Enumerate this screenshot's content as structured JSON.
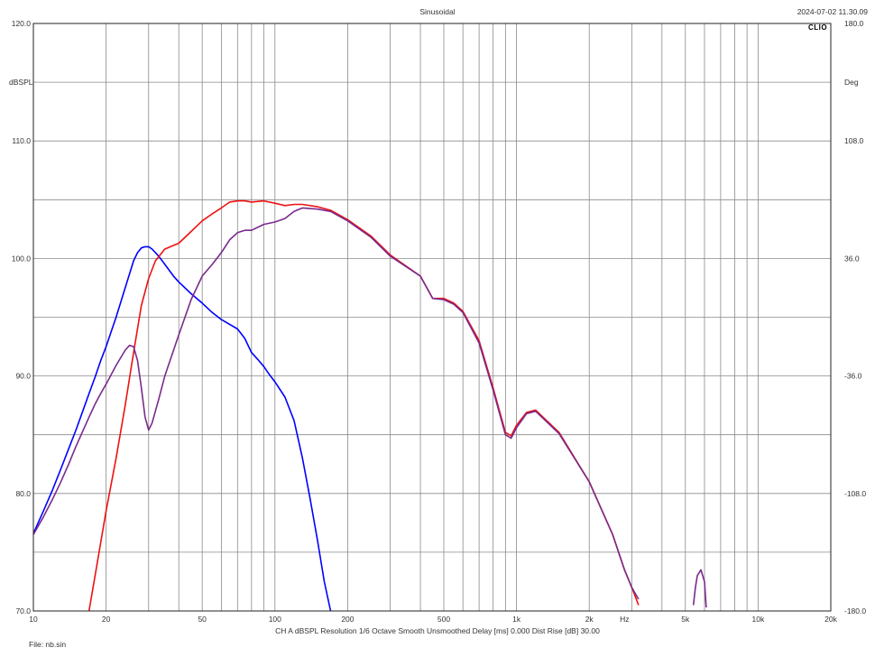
{
  "header": {
    "title": "Sinusoidal",
    "timestamp": "2024-07-02 11.30.09",
    "logo": "CLIO"
  },
  "footer": {
    "status": "CH A   dBSPL   Resolution 1/6 Octave   Smooth Unsmoothed   Delay [ms] 0.000   Dist Rise [dB] 30.00",
    "file": "File: nb.sin"
  },
  "chart_data": {
    "type": "line",
    "xscale": "log",
    "xlim": [
      10,
      20000
    ],
    "ylim": [
      70,
      120
    ],
    "y2lim": [
      -180,
      180
    ],
    "ylabel": "dBSPL",
    "y2label": "Deg",
    "xunit_label": "Hz",
    "grid": true,
    "x_tick_labels": [
      {
        "value": 10,
        "label": "10"
      },
      {
        "value": 20,
        "label": "20"
      },
      {
        "value": 50,
        "label": "50"
      },
      {
        "value": 100,
        "label": "100"
      },
      {
        "value": 200,
        "label": "200"
      },
      {
        "value": 500,
        "label": "500"
      },
      {
        "value": 1000,
        "label": "1k"
      },
      {
        "value": 2000,
        "label": "2k"
      },
      {
        "value": 5000,
        "label": "5k"
      },
      {
        "value": 10000,
        "label": "10k"
      },
      {
        "value": 20000,
        "label": "20k"
      }
    ],
    "y_tick_labels": [
      {
        "value": 120,
        "label": "120.0"
      },
      {
        "value": 110,
        "label": "110.0"
      },
      {
        "value": 100,
        "label": "100.0"
      },
      {
        "value": 90,
        "label": "90.0"
      },
      {
        "value": 80,
        "label": "80.0"
      },
      {
        "value": 70,
        "label": "70.0"
      }
    ],
    "y2_tick_labels": [
      {
        "value": 180,
        "label": "180.0"
      },
      {
        "value": 108,
        "label": "108.0"
      },
      {
        "value": 36,
        "label": "36.0"
      },
      {
        "value": -36,
        "label": "-36.0"
      },
      {
        "value": -108,
        "label": "-108.0"
      },
      {
        "value": -180,
        "label": "-180.0"
      }
    ],
    "series": [
      {
        "color": "#0000ff",
        "x": [
          10,
          11,
          12,
          13,
          14,
          15,
          16,
          17,
          18,
          19,
          20,
          22,
          24,
          26,
          27,
          28,
          29,
          30,
          31,
          33,
          35,
          38,
          40,
          45,
          50,
          55,
          60,
          70,
          75,
          80,
          85,
          90,
          95,
          100,
          110,
          120,
          130,
          140,
          150,
          160,
          170
        ],
        "y": [
          76.6,
          78.5,
          80.3,
          82.1,
          83.8,
          85.4,
          87.0,
          88.5,
          89.9,
          91.3,
          92.5,
          95.0,
          97.5,
          99.8,
          100.5,
          100.9,
          101.0,
          101.0,
          100.8,
          100.2,
          99.5,
          98.5,
          98.0,
          97.0,
          96.2,
          95.4,
          94.8,
          94.0,
          93.2,
          92.0,
          91.4,
          90.8,
          90.1,
          89.5,
          88.2,
          86.2,
          83.0,
          79.5,
          76.0,
          72.5,
          70.0
        ]
      },
      {
        "color": "#ee1111",
        "x": [
          17,
          18,
          20,
          22,
          24,
          26,
          28,
          30,
          32,
          35,
          40,
          45,
          50,
          55,
          60,
          65,
          70,
          75,
          80,
          90,
          100,
          110,
          120,
          130,
          150,
          170,
          200,
          250,
          300,
          400,
          450,
          500,
          550,
          600,
          700,
          800,
          900,
          950,
          1000,
          1100,
          1200,
          1500,
          2000,
          2500,
          2800,
          3000,
          3200
        ],
        "y": [
          70.0,
          73.0,
          78.5,
          83.0,
          87.5,
          92.0,
          96.0,
          98.3,
          99.8,
          100.8,
          101.3,
          102.3,
          103.2,
          103.8,
          104.3,
          104.8,
          104.9,
          104.9,
          104.8,
          104.9,
          104.7,
          104.5,
          104.6,
          104.6,
          104.4,
          104.1,
          103.3,
          101.9,
          100.3,
          98.5,
          96.6,
          96.6,
          96.2,
          95.5,
          93.0,
          89.0,
          85.2,
          84.9,
          85.8,
          86.9,
          87.1,
          85.2,
          81.0,
          76.5,
          73.5,
          72.0,
          70.5
        ]
      },
      {
        "color": "#7a2a8c",
        "x": [
          10,
          11,
          12,
          13,
          14,
          15,
          16,
          17,
          18,
          19,
          20,
          22,
          24,
          25,
          26,
          27,
          28,
          29,
          30,
          31,
          33,
          35,
          40,
          45,
          50,
          55,
          60,
          65,
          70,
          75,
          80,
          90,
          100,
          110,
          120,
          130,
          150,
          170,
          200,
          250,
          300,
          400,
          450,
          500,
          550,
          600,
          700,
          800,
          900,
          950,
          1000,
          1100,
          1200,
          1500,
          2000,
          2500,
          2800,
          3000,
          3200
        ],
        "y": [
          76.5,
          78.0,
          79.5,
          81.0,
          82.5,
          84.0,
          85.3,
          86.5,
          87.6,
          88.5,
          89.3,
          90.9,
          92.2,
          92.6,
          92.5,
          91.3,
          89.0,
          86.5,
          85.4,
          86.0,
          88.0,
          90.0,
          93.5,
          96.5,
          98.5,
          99.5,
          100.5,
          101.6,
          102.2,
          102.4,
          102.4,
          102.9,
          103.1,
          103.4,
          104.0,
          104.3,
          104.2,
          104.0,
          103.2,
          101.8,
          100.2,
          98.5,
          96.6,
          96.5,
          96.1,
          95.4,
          92.8,
          88.8,
          85.0,
          84.7,
          85.6,
          86.8,
          87.0,
          85.1,
          81.0,
          76.5,
          73.5,
          72.0,
          71.0
        ]
      },
      {
        "color": "#7a2a8c",
        "x": [
          5400,
          5500,
          5600,
          5800,
          6000,
          6100
        ],
        "y": [
          70.5,
          72.0,
          73.0,
          73.5,
          72.5,
          70.3
        ]
      }
    ]
  }
}
